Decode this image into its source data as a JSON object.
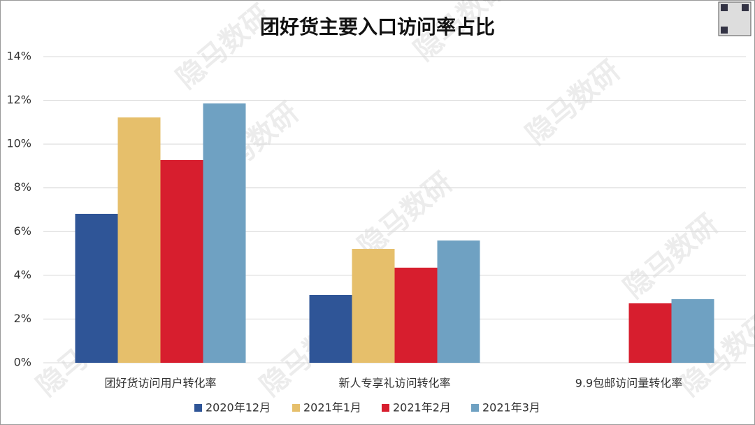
{
  "chart_data": {
    "type": "bar",
    "title": "团好货主要入口访问率占比",
    "watermark": "隐马数研",
    "categories": [
      "团好货访问用户转化率",
      "新人专享礼访问转化率",
      "9.9包邮访问量转化率"
    ],
    "series": [
      {
        "name": "2020年12月",
        "color": "#2f5597",
        "values": [
          6.81,
          3.1,
          null
        ]
      },
      {
        "name": "2021年1月",
        "color": "#e6bf6b",
        "values": [
          11.22,
          5.21,
          null
        ]
      },
      {
        "name": "2021年2月",
        "color": "#d71e2e",
        "values": [
          9.27,
          4.35,
          2.72
        ]
      },
      {
        "name": "2021年3月",
        "color": "#6fa1c2",
        "values": [
          11.86,
          5.59,
          2.91
        ]
      }
    ],
    "ylim": [
      0,
      14
    ],
    "yticks": [
      {
        "value": 0,
        "label": "0%"
      },
      {
        "value": 2,
        "label": "2%"
      },
      {
        "value": 4,
        "label": "4%"
      },
      {
        "value": 6,
        "label": "6%"
      },
      {
        "value": 8,
        "label": "8%"
      },
      {
        "value": 10,
        "label": "10%"
      },
      {
        "value": 12,
        "label": "12%"
      },
      {
        "value": 14,
        "label": "14%"
      }
    ],
    "grid": true,
    "legend": "bottom"
  }
}
